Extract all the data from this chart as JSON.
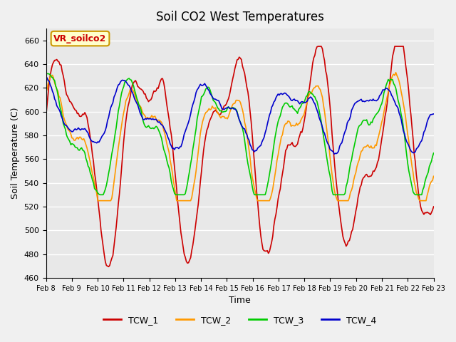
{
  "title": "Soil CO2 West Temperatures",
  "xlabel": "Time",
  "ylabel": "Soil Temperature (C)",
  "ylim": [
    460,
    670
  ],
  "yticks": [
    460,
    480,
    500,
    520,
    540,
    560,
    580,
    600,
    620,
    640,
    660
  ],
  "x_labels": [
    "Feb 8",
    "Feb 9",
    "Feb 10",
    "Feb 11",
    "Feb 12",
    "Feb 13",
    "Feb 14",
    "Feb 15",
    "Feb 16",
    "Feb 17",
    "Feb 18",
    "Feb 19",
    "Feb 20",
    "Feb 21",
    "Feb 22",
    "Feb 23"
  ],
  "n_points": 360,
  "background_color": "#e8e8e8",
  "grid_color": "#ffffff",
  "legend_items": [
    "TCW_1",
    "TCW_2",
    "TCW_3",
    "TCW_4"
  ],
  "colors": [
    "#cc0000",
    "#ff9900",
    "#00cc00",
    "#0000cc"
  ],
  "annotation_text": "VR_soilco2",
  "annotation_color": "#cc0000",
  "annotation_bg": "#ffffcc",
  "annotation_border": "#cc9900"
}
